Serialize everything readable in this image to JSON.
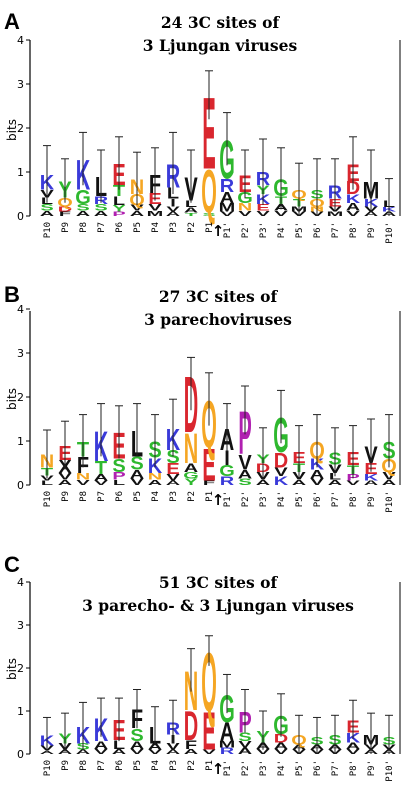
{
  "chart_data": [
    {
      "type": "sequence-logo",
      "panel": "A",
      "title_line1": "24 3C sites of",
      "title_line2": "3 Ljungan viruses",
      "ylabel": "bits",
      "ylim": [
        0,
        4
      ],
      "yticks": [
        "0",
        "1",
        "2",
        "3",
        "4"
      ],
      "positions": [
        "P10",
        "P9",
        "P8",
        "P7",
        "P6",
        "P5",
        "P4",
        "P3",
        "P2",
        "P1",
        "P1'",
        "P2'",
        "P3'",
        "P4'",
        "P5'",
        "P6'",
        "P7'",
        "P8'",
        "P9'",
        "P10'"
      ],
      "cleavage_marker": "↑",
      "totals": [
        0.95,
        0.8,
        1.3,
        0.9,
        1.2,
        0.85,
        0.95,
        1.2,
        0.9,
        2.75,
        1.75,
        0.95,
        1.0,
        0.85,
        0.6,
        0.6,
        0.7,
        1.2,
        0.8,
        0.35
      ],
      "errors": [
        0.65,
        0.5,
        0.6,
        0.6,
        0.6,
        0.6,
        0.6,
        0.7,
        0.6,
        0.55,
        0.6,
        0.55,
        0.75,
        0.7,
        0.6,
        0.7,
        0.6,
        0.6,
        0.7,
        0.5
      ],
      "stacks": [
        [
          [
            "A",
            0.12
          ],
          [
            "S",
            0.15
          ],
          [
            "L",
            0.15
          ],
          [
            "V",
            0.18
          ],
          [
            "K",
            0.35
          ]
        ],
        [
          [
            "F",
            0.1
          ],
          [
            "D",
            0.12
          ],
          [
            "Q",
            0.2
          ],
          [
            "Y",
            0.38
          ]
        ],
        [
          [
            "A",
            0.12
          ],
          [
            "S",
            0.15
          ],
          [
            "G",
            0.33
          ],
          [
            "K",
            0.7
          ]
        ],
        [
          [
            "A",
            0.12
          ],
          [
            "S",
            0.15
          ],
          [
            "R",
            0.18
          ],
          [
            "L",
            0.45
          ]
        ],
        [
          [
            "P",
            0.1
          ],
          [
            "Y",
            0.15
          ],
          [
            "L",
            0.2
          ],
          [
            "T",
            0.25
          ],
          [
            "E",
            0.5
          ]
        ],
        [
          [
            "A",
            0.12
          ],
          [
            "V",
            0.13
          ],
          [
            "Q",
            0.25
          ],
          [
            "N",
            0.35
          ]
        ],
        [
          [
            "M",
            0.12
          ],
          [
            "V",
            0.15
          ],
          [
            "E",
            0.25
          ],
          [
            "F",
            0.43
          ]
        ],
        [
          [
            "A",
            0.1
          ],
          [
            "V",
            0.12
          ],
          [
            "I",
            0.18
          ],
          [
            "L",
            0.25
          ],
          [
            "R",
            0.55
          ]
        ],
        [
          [
            "T",
            0.08
          ],
          [
            "A",
            0.12
          ],
          [
            "L",
            0.15
          ],
          [
            "V",
            0.55
          ]
        ],
        [
          [
            "S",
            0.08
          ],
          [
            "Q",
            1.0
          ],
          [
            "E",
            1.67
          ]
        ],
        [
          [
            "V",
            0.1
          ],
          [
            "M",
            0.2
          ],
          [
            "A",
            0.25
          ],
          [
            "R",
            0.3
          ],
          [
            "G",
            0.9
          ]
        ],
        [
          [
            "V",
            0.12
          ],
          [
            "N",
            0.18
          ],
          [
            "G",
            0.25
          ],
          [
            "E",
            0.4
          ]
        ],
        [
          [
            "V",
            0.12
          ],
          [
            "E",
            0.15
          ],
          [
            "K",
            0.23
          ],
          [
            "Y",
            0.2
          ],
          [
            "R",
            0.3
          ]
        ],
        [
          [
            "V",
            0.12
          ],
          [
            "A",
            0.15
          ],
          [
            "T",
            0.18
          ],
          [
            "G",
            0.4
          ]
        ],
        [
          [
            "V",
            0.1
          ],
          [
            "M",
            0.12
          ],
          [
            "T",
            0.18
          ],
          [
            "Q",
            0.2
          ]
        ],
        [
          [
            "V",
            0.1
          ],
          [
            "N",
            0.12
          ],
          [
            "Q",
            0.18
          ],
          [
            "S",
            0.2
          ]
        ],
        [
          [
            "M",
            0.1
          ],
          [
            "V",
            0.12
          ],
          [
            "E",
            0.18
          ],
          [
            "R",
            0.3
          ]
        ],
        [
          [
            "V",
            0.12
          ],
          [
            "A",
            0.18
          ],
          [
            "K",
            0.2
          ],
          [
            "D",
            0.3
          ],
          [
            "E",
            0.4
          ]
        ],
        [
          [
            "A",
            0.1
          ],
          [
            "V",
            0.12
          ],
          [
            "K",
            0.18
          ],
          [
            "M",
            0.4
          ]
        ],
        [
          [
            "A",
            0.1
          ],
          [
            "K",
            0.1
          ],
          [
            "L",
            0.15
          ]
        ]
      ]
    },
    {
      "type": "sequence-logo",
      "panel": "B",
      "title_line1": "27 3C sites of",
      "title_line2": "3 parechoviruses",
      "ylabel": "bits",
      "ylim": [
        0,
        4
      ],
      "yticks": [
        "0",
        "1",
        "2",
        "3",
        "4"
      ],
      "positions": [
        "P10",
        "P9",
        "P8",
        "P7",
        "P6",
        "P5",
        "P4",
        "P3",
        "P2",
        "P1",
        "P1'",
        "P2'",
        "P3'",
        "P4'",
        "P5'",
        "P6'",
        "P7'",
        "P8'",
        "P9'",
        "P10'"
      ],
      "cleavage_marker": "↑",
      "totals": [
        0.7,
        0.9,
        1.0,
        1.25,
        1.2,
        1.25,
        1.0,
        1.3,
        2.3,
        1.95,
        1.3,
        1.7,
        0.7,
        1.55,
        0.75,
        1.0,
        0.75,
        0.75,
        0.9,
        1.0
      ],
      "errors": [
        0.55,
        0.55,
        0.6,
        0.6,
        0.6,
        0.6,
        0.6,
        0.65,
        0.6,
        0.6,
        0.55,
        0.55,
        0.6,
        0.6,
        0.6,
        0.6,
        0.55,
        0.6,
        0.6,
        0.6
      ],
      "stacks": [
        [
          [
            "L",
            0.1
          ],
          [
            "V",
            0.12
          ],
          [
            "T",
            0.18
          ],
          [
            "N",
            0.3
          ]
        ],
        [
          [
            "A",
            0.12
          ],
          [
            "V",
            0.15
          ],
          [
            "X",
            0.3
          ],
          [
            "E",
            0.33
          ]
        ],
        [
          [
            "V",
            0.12
          ],
          [
            "N",
            0.15
          ],
          [
            "F",
            0.38
          ],
          [
            "T",
            0.35
          ]
        ],
        [
          [
            "V",
            0.1
          ],
          [
            "A",
            0.15
          ],
          [
            "T",
            0.3
          ],
          [
            "K",
            0.7
          ]
        ],
        [
          [
            "L",
            0.12
          ],
          [
            "P",
            0.18
          ],
          [
            "S",
            0.3
          ],
          [
            "E",
            0.6
          ]
        ],
        [
          [
            "V",
            0.15
          ],
          [
            "A",
            0.2
          ],
          [
            "S",
            0.3
          ],
          [
            "L",
            0.6
          ]
        ],
        [
          [
            "A",
            0.12
          ],
          [
            "N",
            0.15
          ],
          [
            "K",
            0.35
          ],
          [
            "S",
            0.38
          ]
        ],
        [
          [
            "A",
            0.1
          ],
          [
            "V",
            0.15
          ],
          [
            "E",
            0.25
          ],
          [
            "S",
            0.3
          ],
          [
            "K",
            0.5
          ]
        ],
        [
          [
            "Y",
            0.15
          ],
          [
            "G",
            0.15
          ],
          [
            "A",
            0.2
          ],
          [
            "N",
            0.7
          ],
          [
            "D",
            1.3
          ]
        ],
        [
          [
            "F",
            0.1
          ],
          [
            "E",
            0.75
          ],
          [
            "Q",
            1.1
          ]
        ],
        [
          [
            "R",
            0.2
          ],
          [
            "G",
            0.25
          ],
          [
            "I",
            0.35
          ],
          [
            "A",
            0.5
          ]
        ],
        [
          [
            "S",
            0.15
          ],
          [
            "A",
            0.2
          ],
          [
            "V",
            0.35
          ],
          [
            "P",
            1.0
          ]
        ],
        [
          [
            "A",
            0.12
          ],
          [
            "V",
            0.18
          ],
          [
            "D",
            0.2
          ],
          [
            "Y",
            0.2
          ]
        ],
        [
          [
            "K",
            0.2
          ],
          [
            "V",
            0.2
          ],
          [
            "D",
            0.35
          ],
          [
            "G",
            0.8
          ]
        ],
        [
          [
            "A",
            0.12
          ],
          [
            "V",
            0.18
          ],
          [
            "T",
            0.2
          ],
          [
            "E",
            0.25
          ]
        ],
        [
          [
            "V",
            0.15
          ],
          [
            "A",
            0.2
          ],
          [
            "K",
            0.25
          ],
          [
            "Q",
            0.4
          ]
        ],
        [
          [
            "A",
            0.12
          ],
          [
            "L",
            0.15
          ],
          [
            "V",
            0.2
          ],
          [
            "S",
            0.28
          ]
        ],
        [
          [
            "V",
            0.1
          ],
          [
            "P",
            0.15
          ],
          [
            "T",
            0.2
          ],
          [
            "E",
            0.3
          ]
        ],
        [
          [
            "A",
            0.1
          ],
          [
            "K",
            0.15
          ],
          [
            "E",
            0.25
          ],
          [
            "V",
            0.4
          ]
        ],
        [
          [
            "A",
            0.12
          ],
          [
            "V",
            0.18
          ],
          [
            "Q",
            0.3
          ],
          [
            "S",
            0.4
          ]
        ]
      ]
    },
    {
      "type": "sequence-logo",
      "panel": "C",
      "title_line1": "51 3C sites of",
      "title_line2": "3 parecho- & 3 Ljungan viruses",
      "ylabel": "bits",
      "ylim": [
        0,
        4
      ],
      "yticks": [
        "0",
        "1",
        "2",
        "3",
        "4"
      ],
      "positions": [
        "P10",
        "P9",
        "P8",
        "P7",
        "P6",
        "P5",
        "P4",
        "P3",
        "P2",
        "P1",
        "P1'",
        "P2'",
        "P3'",
        "P4'",
        "P5'",
        "P6'",
        "P7'",
        "P8'",
        "P9'",
        "P10'"
      ],
      "cleavage_marker": "↑",
      "totals": [
        0.45,
        0.5,
        0.65,
        0.85,
        0.8,
        1.05,
        0.65,
        0.75,
        1.95,
        2.4,
        1.4,
        1.0,
        0.55,
        0.9,
        0.45,
        0.4,
        0.45,
        0.8,
        0.45,
        0.4
      ],
      "errors": [
        0.4,
        0.45,
        0.55,
        0.45,
        0.5,
        0.45,
        0.45,
        0.5,
        0.5,
        0.35,
        0.45,
        0.5,
        0.45,
        0.5,
        0.45,
        0.45,
        0.45,
        0.45,
        0.5,
        0.5
      ],
      "stacks": [
        [
          [
            "A",
            0.08
          ],
          [
            "V",
            0.12
          ],
          [
            "K",
            0.25
          ]
        ],
        [
          [
            "A",
            0.1
          ],
          [
            "V",
            0.15
          ],
          [
            "Y",
            0.25
          ]
        ],
        [
          [
            "A",
            0.1
          ],
          [
            "S",
            0.15
          ],
          [
            "K",
            0.4
          ]
        ],
        [
          [
            "V",
            0.12
          ],
          [
            "A",
            0.18
          ],
          [
            "K",
            0.55
          ]
        ],
        [
          [
            "A",
            0.12
          ],
          [
            "L",
            0.2
          ],
          [
            "E",
            0.48
          ]
        ],
        [
          [
            "V",
            0.12
          ],
          [
            "A",
            0.18
          ],
          [
            "S",
            0.3
          ],
          [
            "F",
            0.45
          ]
        ],
        [
          [
            "V",
            0.1
          ],
          [
            "A",
            0.15
          ],
          [
            "L",
            0.4
          ]
        ],
        [
          [
            "A",
            0.1
          ],
          [
            "V",
            0.15
          ],
          [
            "I",
            0.2
          ],
          [
            "R",
            0.3
          ]
        ],
        [
          [
            "A",
            0.12
          ],
          [
            "F",
            0.2
          ],
          [
            "D",
            0.7
          ],
          [
            "N",
            0.93
          ]
        ],
        [
          [
            "V",
            0.1
          ],
          [
            "E",
            0.9
          ],
          [
            "Q",
            1.4
          ]
        ],
        [
          [
            "R",
            0.15
          ],
          [
            "M",
            0.15
          ],
          [
            "A",
            0.45
          ],
          [
            "G",
            0.65
          ]
        ],
        [
          [
            "A",
            0.15
          ],
          [
            "V",
            0.15
          ],
          [
            "S",
            0.2
          ],
          [
            "P",
            0.5
          ]
        ],
        [
          [
            "V",
            0.12
          ],
          [
            "A",
            0.15
          ],
          [
            "Y",
            0.28
          ]
        ],
        [
          [
            "V",
            0.12
          ],
          [
            "A",
            0.15
          ],
          [
            "D",
            0.2
          ],
          [
            "G",
            0.43
          ]
        ],
        [
          [
            "V",
            0.1
          ],
          [
            "A",
            0.12
          ],
          [
            "Q",
            0.23
          ]
        ],
        [
          [
            "V",
            0.1
          ],
          [
            "A",
            0.12
          ],
          [
            "S",
            0.18
          ]
        ],
        [
          [
            "V",
            0.1
          ],
          [
            "A",
            0.12
          ],
          [
            "S",
            0.23
          ]
        ],
        [
          [
            "V",
            0.12
          ],
          [
            "A",
            0.15
          ],
          [
            "K",
            0.23
          ],
          [
            "E",
            0.3
          ]
        ],
        [
          [
            "A",
            0.1
          ],
          [
            "V",
            0.12
          ],
          [
            "M",
            0.23
          ]
        ],
        [
          [
            "A",
            0.1
          ],
          [
            "V",
            0.12
          ],
          [
            "S",
            0.18
          ]
        ]
      ]
    }
  ],
  "colors": {
    "acidic": "#d9262e",
    "basic": "#3a3ad9",
    "amide": "#f5a623",
    "polar_green": "#2eb82e",
    "hydrophobic": "#111111",
    "proline": "#b020b0",
    "aromatic_other": "#8b5a2b"
  }
}
